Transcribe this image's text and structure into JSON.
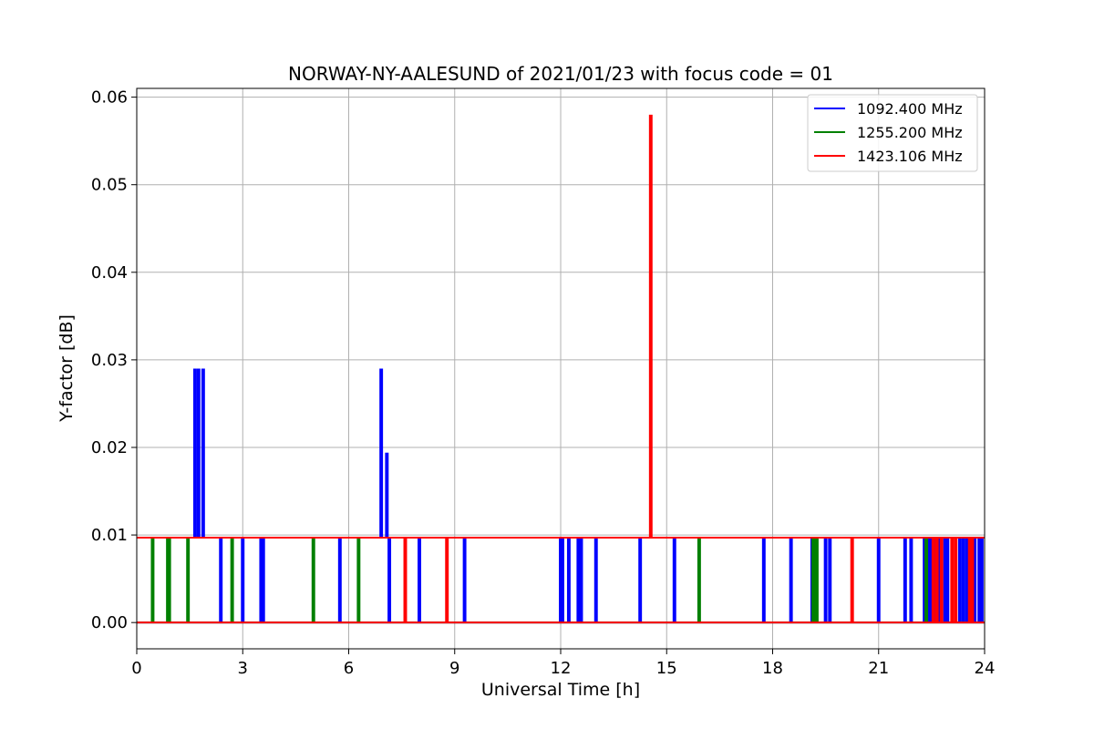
{
  "chart_data": {
    "type": "line",
    "title": "NORWAY-NY-AALESUND of 2021/01/23 with focus code = 01",
    "xlabel": "Universal Time [h]",
    "ylabel": "Y-factor [dB]",
    "xlim": [
      0,
      24
    ],
    "ylim": [
      -0.003,
      0.061
    ],
    "xticks": [
      0,
      3,
      6,
      9,
      12,
      15,
      18,
      21,
      24
    ],
    "yticks": [
      0.0,
      0.01,
      0.02,
      0.03,
      0.04,
      0.05,
      0.06
    ],
    "ytick_labels": [
      "0.00",
      "0.01",
      "0.02",
      "0.03",
      "0.04",
      "0.05",
      "0.06"
    ],
    "grid": true,
    "legend_position": "top-right",
    "baseline_high": 0.0097,
    "baseline_low": 0.0,
    "series": [
      {
        "name": "1092.400 MHz",
        "color": "#0000ff",
        "drops": [
          2.38,
          3.0,
          3.52,
          3.58,
          5.75,
          7.15,
          8.0,
          9.28,
          12.0,
          12.05,
          12.23,
          12.5,
          12.58,
          13.0,
          14.25,
          15.22,
          17.75,
          18.52,
          19.12,
          19.5,
          19.62,
          21.0,
          21.75,
          21.92,
          22.3,
          22.4,
          22.48,
          22.58,
          22.72,
          22.88,
          22.95,
          23.3,
          23.4,
          23.5,
          23.62,
          23.72,
          23.85,
          23.92
        ],
        "spikes": [
          {
            "x": 1.65,
            "y": 0.029
          },
          {
            "x": 1.75,
            "y": 0.029
          },
          {
            "x": 1.88,
            "y": 0.029
          },
          {
            "x": 6.92,
            "y": 0.029
          },
          {
            "x": 7.08,
            "y": 0.0194
          }
        ]
      },
      {
        "name": "1255.200 MHz",
        "color": "#008000",
        "drops": [
          0.45,
          0.88,
          0.92,
          1.45,
          2.7,
          5.0,
          6.28,
          15.92,
          19.15,
          19.2,
          19.25,
          22.35
        ],
        "spikes": []
      },
      {
        "name": "1423.106 MHz",
        "color": "#ff0000",
        "drops": [
          7.6,
          8.78,
          20.25,
          22.55,
          22.65,
          22.78,
          23.08,
          23.18,
          23.58,
          23.65
        ],
        "spikes": [
          {
            "x": 14.55,
            "y": 0.058
          }
        ]
      }
    ]
  }
}
